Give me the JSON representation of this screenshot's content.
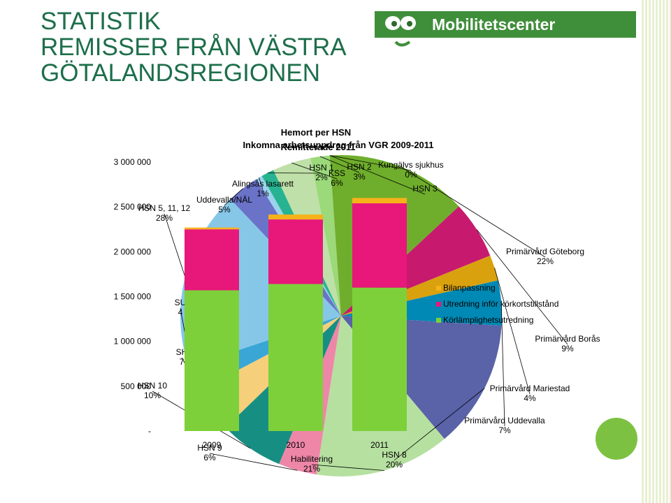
{
  "slide": {
    "title_lines": [
      "STATISTIK",
      "REMISSER FRÅN VÄSTRA",
      "GÖTALANDSREGIONEN"
    ],
    "logo_text": "Mobilitetscenter",
    "logo_color": "#3f8e3a"
  },
  "chart_data": [
    {
      "type": "bar",
      "stacked": true,
      "title": "Inkomna arbetsuppdrag från VGR 2009-2011",
      "categories": [
        "2009",
        "2010",
        "2011"
      ],
      "y_ticks": [
        "3 000 000",
        "2 500 000",
        "2 000 000",
        "1 500 000",
        "1 000 000",
        "500 000",
        "-"
      ],
      "ylim": [
        0,
        3000000
      ],
      "series": [
        {
          "name": "Körlämplighetsutredning",
          "color": "#7ed03a",
          "values": [
            1570000,
            1640000,
            1600000
          ]
        },
        {
          "name": "Utredning inför körkortstillstånd",
          "color": "#e8177a",
          "values": [
            680000,
            720000,
            940000
          ]
        },
        {
          "name": "Bilanpassning",
          "color": "#f6b21a",
          "values": [
            20000,
            55000,
            60000
          ]
        }
      ],
      "legend": "right"
    },
    {
      "type": "pie",
      "title": "Hemort per HSN",
      "subtitle": "Remitterade 2011",
      "slices": [
        {
          "label": "Kungälvs sjukhus",
          "value": 0,
          "pct": "0%",
          "color": "#e890b0"
        },
        {
          "label": "HSN 3",
          "value": 0,
          "pct": "",
          "color": "#e83c3c"
        },
        {
          "label": "Primärvård Göteborg",
          "value": 22,
          "pct": "22%",
          "color": "#6fae2c"
        },
        {
          "label": "Primärvård Borås",
          "value": 9,
          "pct": "9%",
          "color": "#c71a6e"
        },
        {
          "label": "Primärvård Mariestad",
          "value": 4,
          "pct": "4%",
          "color": "#d9a10e"
        },
        {
          "label": "Primärvård Uddevalla",
          "value": 7,
          "pct": "7%",
          "color": "#0089b5"
        },
        {
          "label": "HSN 8",
          "value": 20,
          "pct": "20%",
          "color": "#5a62a8"
        },
        {
          "label": "Habilitering",
          "value": 21,
          "pct": "21%",
          "color": "#b6e0a0"
        },
        {
          "label": "HSN 9",
          "value": 6,
          "pct": "6%",
          "color": "#ee86a8"
        },
        {
          "label": "HSN 10",
          "value": 10,
          "pct": "10%",
          "color": "#168f82"
        },
        {
          "label": "SH",
          "value": 7,
          "pct": "7",
          "color": "#f6cf7a"
        },
        {
          "label": "SU",
          "value": 4,
          "pct": "4",
          "color": "#39a6d6"
        },
        {
          "label": "HSN 5, 11, 12",
          "value": 28,
          "pct": "28%",
          "color": "#86c7e8"
        },
        {
          "label": "Uddevalla/NÄL",
          "value": 5,
          "pct": "5%",
          "color": "#6a73c8"
        },
        {
          "label": "Alingsås lasarett",
          "value": 1,
          "pct": "1%",
          "color": "#9bd2ee"
        },
        {
          "label": "HSN 1",
          "value": 2,
          "pct": "2%",
          "color": "#27b391"
        },
        {
          "label": "KSS",
          "value": 6,
          "pct": "6%",
          "color": "#bfe0a8"
        },
        {
          "label": "HSN 2",
          "value": 3,
          "pct": "3%",
          "color": "#9bd97a"
        }
      ]
    }
  ]
}
